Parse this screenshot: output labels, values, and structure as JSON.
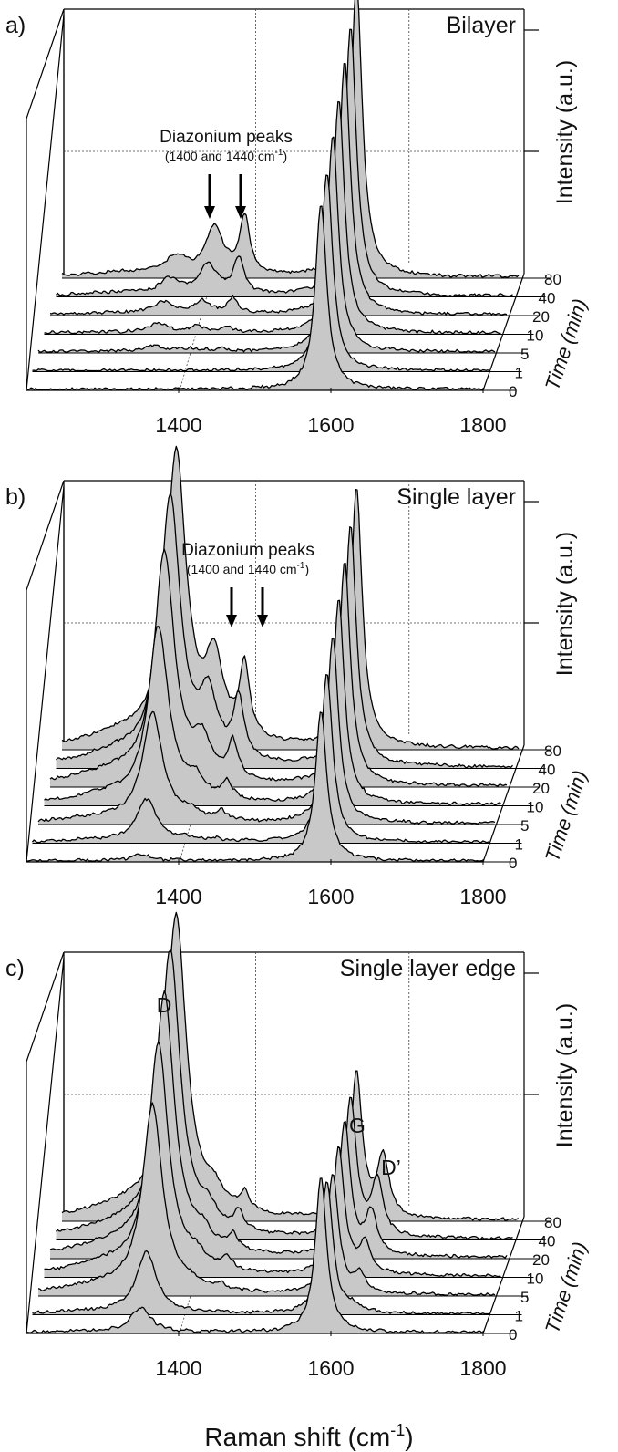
{
  "figure": {
    "xlabel_main": "Raman shift (cm",
    "xlabel_sup": "-1",
    "xlabel_close": ")",
    "ylabel": "Intensity (a.u.)",
    "zlabel": "Time",
    "zlabel_unit": "(min)"
  },
  "chart_data": [
    {
      "type": "area",
      "panel_label": "a)",
      "title": "Bilayer",
      "xlim": [
        1200,
        1800
      ],
      "x_ticks": [
        "1400",
        "1600",
        "1800"
      ],
      "time_ticks": [
        "0",
        "1",
        "5",
        "10",
        "20",
        "40",
        "80"
      ],
      "annotation": {
        "text": "Diazonium peaks",
        "subtext": "(1400 and 1440 cm",
        "subsup": "-1",
        "subclose": ")"
      },
      "series": [
        {
          "time": 0,
          "D": 0.0,
          "G": 0.62,
          "Dp": 0.0,
          "diaz1": 0.0,
          "diaz2": 0.0
        },
        {
          "time": 1,
          "D": 0.0,
          "G": 0.66,
          "Dp": 0.0,
          "diaz1": 0.0,
          "diaz2": 0.0
        },
        {
          "time": 5,
          "D": 0.02,
          "G": 0.72,
          "Dp": 0.0,
          "diaz1": 0.01,
          "diaz2": 0.01
        },
        {
          "time": 10,
          "D": 0.03,
          "G": 0.78,
          "Dp": 0.0,
          "diaz1": 0.02,
          "diaz2": 0.02
        },
        {
          "time": 20,
          "D": 0.04,
          "G": 0.84,
          "Dp": 0.0,
          "diaz1": 0.04,
          "diaz2": 0.05
        },
        {
          "time": 40,
          "D": 0.05,
          "G": 0.9,
          "Dp": 0.0,
          "diaz1": 0.1,
          "diaz2": 0.12
        },
        {
          "time": 80,
          "D": 0.06,
          "G": 0.98,
          "Dp": 0.0,
          "diaz1": 0.16,
          "diaz2": 0.19
        }
      ]
    },
    {
      "type": "area",
      "panel_label": "b)",
      "title": "Single layer",
      "xlim": [
        1200,
        1800
      ],
      "x_ticks": [
        "1400",
        "1600",
        "1800"
      ],
      "time_ticks": [
        "0",
        "1",
        "5",
        "10",
        "20",
        "40",
        "80"
      ],
      "annotation": {
        "text": "Diazonium peaks",
        "subtext": "(1400 and 1440 cm",
        "subsup": "-1",
        "subclose": ")"
      },
      "series": [
        {
          "time": 0,
          "D": 0.02,
          "G": 0.5,
          "Dp": 0.0,
          "diaz1": 0.0,
          "diaz2": 0.0
        },
        {
          "time": 1,
          "D": 0.14,
          "G": 0.56,
          "Dp": 0.0,
          "diaz1": 0.01,
          "diaz2": 0.01
        },
        {
          "time": 5,
          "D": 0.36,
          "G": 0.62,
          "Dp": 0.0,
          "diaz1": 0.03,
          "diaz2": 0.03
        },
        {
          "time": 10,
          "D": 0.58,
          "G": 0.68,
          "Dp": 0.0,
          "diaz1": 0.06,
          "diaz2": 0.06
        },
        {
          "time": 20,
          "D": 0.76,
          "G": 0.74,
          "Dp": 0.0,
          "diaz1": 0.12,
          "diaz2": 0.12
        },
        {
          "time": 40,
          "D": 0.88,
          "G": 0.8,
          "Dp": 0.0,
          "diaz1": 0.2,
          "diaz2": 0.2
        },
        {
          "time": 80,
          "D": 0.96,
          "G": 0.86,
          "Dp": 0.0,
          "diaz1": 0.26,
          "diaz2": 0.24
        }
      ]
    },
    {
      "type": "area",
      "panel_label": "c)",
      "title": "Single layer edge",
      "xlim": [
        1200,
        1800
      ],
      "x_ticks": [
        "1400",
        "1600",
        "1800"
      ],
      "time_ticks": [
        "0",
        "1",
        "5",
        "10",
        "20",
        "40",
        "80"
      ],
      "peak_labels": {
        "D": "D",
        "G": "G",
        "Dp": "D’"
      },
      "series": [
        {
          "time": 0,
          "D": 0.08,
          "G": 0.52,
          "Dp": 0.0,
          "diaz1": 0.0,
          "diaz2": 0.0
        },
        {
          "time": 1,
          "D": 0.2,
          "G": 0.44,
          "Dp": 0.02,
          "diaz1": 0.0,
          "diaz2": 0.0
        },
        {
          "time": 5,
          "D": 0.62,
          "G": 0.4,
          "Dp": 0.06,
          "diaz1": 0.02,
          "diaz2": 0.02
        },
        {
          "time": 10,
          "D": 0.76,
          "G": 0.42,
          "Dp": 0.1,
          "diaz1": 0.04,
          "diaz2": 0.04
        },
        {
          "time": 20,
          "D": 0.86,
          "G": 0.44,
          "Dp": 0.14,
          "diaz1": 0.05,
          "diaz2": 0.05
        },
        {
          "time": 40,
          "D": 0.94,
          "G": 0.46,
          "Dp": 0.18,
          "diaz1": 0.06,
          "diaz2": 0.06
        },
        {
          "time": 80,
          "D": 1.0,
          "G": 0.48,
          "Dp": 0.2,
          "diaz1": 0.06,
          "diaz2": 0.06
        }
      ]
    }
  ]
}
